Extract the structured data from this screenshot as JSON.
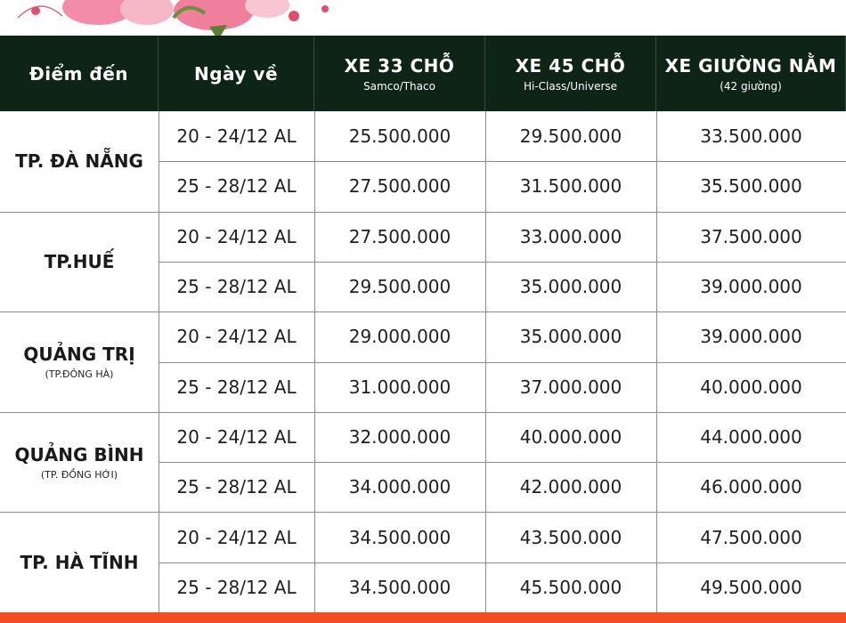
{
  "table": {
    "header": [
      {
        "title": "Điểm đến"
      },
      {
        "title": "Ngày về"
      },
      {
        "title": "XE 33 CHỖ",
        "subtitle": "Samco/Thaco"
      },
      {
        "title": "XE 45 CHỖ",
        "subtitle": "Hi-Class/Universe"
      },
      {
        "title": "XE GIƯỜNG NẰM",
        "subtitle": "(42 giường)"
      }
    ],
    "groups": [
      {
        "destination": "TP. ĐÀ NẴNG",
        "rows": [
          [
            "20 - 24/12 AL",
            "25.500.000",
            "29.500.000",
            "33.500.000"
          ],
          [
            "25 - 28/12 AL",
            "27.500.000",
            "31.500.000",
            "35.500.000"
          ]
        ]
      },
      {
        "destination": "TP.HUẾ",
        "rows": [
          [
            "20 - 24/12 AL",
            "27.500.000",
            "33.000.000",
            "37.500.000"
          ],
          [
            "25 - 28/12 AL",
            "29.500.000",
            "35.000.000",
            "39.000.000"
          ]
        ]
      },
      {
        "destination": "QUẢNG TRỊ",
        "note": "(TP.ĐÔNG HÀ)",
        "rows": [
          [
            "20 - 24/12 AL",
            "29.000.000",
            "35.000.000",
            "39.000.000"
          ],
          [
            "25 - 28/12 AL",
            "31.000.000",
            "37.000.000",
            "40.000.000"
          ]
        ]
      },
      {
        "destination": "QUẢNG BÌNH",
        "note": "(TP. ĐỒNG HỚI)",
        "rows": [
          [
            "20 - 24/12 AL",
            "32.000.000",
            "40.000.000",
            "44.000.000"
          ],
          [
            "25 - 28/12 AL",
            "34.000.000",
            "42.000.000",
            "46.000.000"
          ]
        ]
      },
      {
        "destination": "TP. HÀ TĨNH",
        "rows": [
          [
            "20 - 24/12 AL",
            "34.500.000",
            "43.500.000",
            "47.500.000"
          ],
          [
            "25 - 28/12 AL",
            "34.500.000",
            "45.500.000",
            "49.500.000"
          ]
        ]
      }
    ]
  }
}
